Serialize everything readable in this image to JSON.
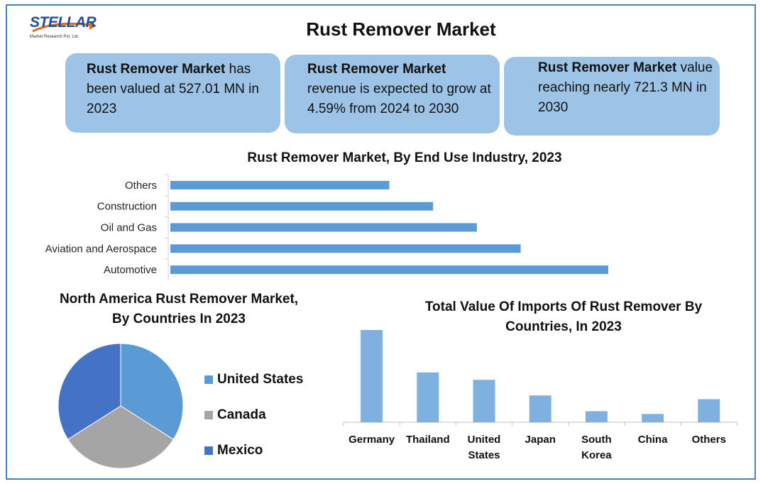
{
  "logo": {
    "word": "STELLAR",
    "sub": "Market Research Pvt. Ltd."
  },
  "title": "Rust Remover Market",
  "kpis": [
    {
      "bold": "Rust Remover Market",
      "text": " has been valued at 527.01 MN in 2023"
    },
    {
      "bold": "Rust Remover Market",
      "text": " revenue is expected to grow at 4.59% from 2024 to 2030"
    },
    {
      "bold": "Rust Remover Market",
      "text": " value reaching nearly 721.3 MN in 2030"
    }
  ],
  "chart_data": [
    {
      "type": "bar",
      "orientation": "horizontal",
      "title": "Rust Remover Market, By End Use Industry, 2023",
      "categories": [
        "Others",
        "Construction",
        "Oil and Gas",
        "Aviation and Aerospace",
        "Automotive"
      ],
      "values": [
        50,
        60,
        70,
        80,
        100
      ],
      "color": "#5b9bd5",
      "grid": false,
      "value_axis_labels": false
    },
    {
      "type": "pie",
      "title": "North America Rust Remover Market, By Countries In 2023",
      "categories": [
        "United States",
        "Canada",
        "Mexico"
      ],
      "values": [
        34,
        32,
        34
      ],
      "colors": [
        "#5b9bd5",
        "#a5a5a5",
        "#4472c4"
      ],
      "legend": "right"
    },
    {
      "type": "bar",
      "title": "Total Value Of Imports Of Rust Remover By Countries, In 2023",
      "categories": [
        "Germany",
        "Thailand",
        "United States",
        "Japan",
        "South Korea",
        "China",
        "Others"
      ],
      "values": [
        100,
        54,
        46,
        29,
        12,
        9,
        25
      ],
      "color": "#7eb0e0",
      "grid": false,
      "value_axis_labels": false
    }
  ]
}
